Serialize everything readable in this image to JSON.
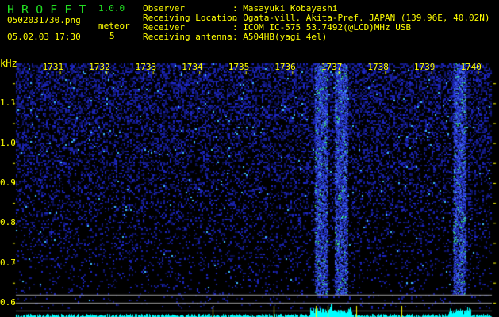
{
  "header": {
    "app_name": "H R O F F T",
    "version": "1.0.0",
    "filename": "0502031730.png",
    "datetime": "05.02.03 17:30",
    "meteor_label": "meteor",
    "meteor_count": "5"
  },
  "info": [
    {
      "label": "Observer",
      "value": ": Masayuki Kobayashi"
    },
    {
      "label": "Receiving Location",
      "value": ": Ogata-vill. Akita-Pref. JAPAN (139.96E, 40.02N)"
    },
    {
      "label": "Receiver",
      "value": ": ICOM IC-575 53.7492(@LCD)MHz USB"
    },
    {
      "label": "Receiving antenna",
      "value": ": A504HB(yagi 4el)"
    }
  ],
  "colors": {
    "text": "#ffff00",
    "title": "#22dd22",
    "signal": "#00ffff",
    "noise": "#1a2ad0",
    "echo": "#40ff80"
  },
  "chart_data": {
    "type": "heatmap",
    "ylabel": "kHz",
    "x_ticks": [
      "1731",
      "1732",
      "1733",
      "1734",
      "1735",
      "1736",
      "1737",
      "1738",
      "1739",
      "1740"
    ],
    "y_ticks": [
      "1.1",
      "1.0",
      "0.9",
      "0.8",
      "0.7",
      "0.6"
    ],
    "xlim": [
      1730.05,
      1740.3
    ],
    "ylim": [
      0.57,
      1.2
    ],
    "reference_lines_khz": [
      0.58,
      0.6,
      0.62
    ],
    "meteor_echoes_time": [
      1736.62,
      1737.05,
      1739.6
    ],
    "grid": false
  }
}
